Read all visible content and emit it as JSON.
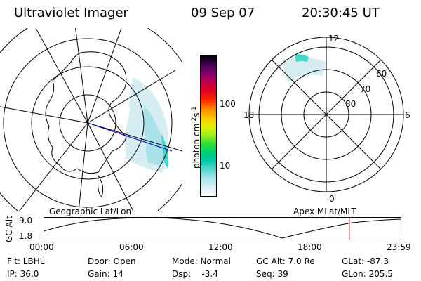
{
  "header": {
    "title": "Ultraviolet Imager",
    "date": "09 Sep 07",
    "time": "20:30:45 UT"
  },
  "left_panel": {
    "caption": "Geographic Lat/Lon"
  },
  "right_panel": {
    "caption": "Apex MLat/MLT",
    "mlt_labels": {
      "top": "12",
      "left": "18",
      "right": "6",
      "bottom": "0"
    },
    "mlat_labels": [
      "60",
      "70",
      "80"
    ]
  },
  "colorbar": {
    "unit_label": "photon cm",
    "unit_sup1": "-2",
    "unit_mid": "s",
    "unit_sup2": "-1",
    "tick_100": "100",
    "tick_10": "10",
    "colors": [
      "#ffffff",
      "#d8f0f4",
      "#a8e4ec",
      "#5ad8d0",
      "#00c8a8",
      "#00d070",
      "#30e030",
      "#a8f020",
      "#e8f000",
      "#ffc000",
      "#ff8000",
      "#ff2000",
      "#e00020",
      "#c00050",
      "#800070",
      "#400050",
      "#000000"
    ]
  },
  "altitude_plot": {
    "ylabel": "GC Alt",
    "ymax_label": "9.0",
    "ymin_label": "1.8",
    "x_ticks": [
      "00:00",
      "06:00",
      "12:00",
      "18:00",
      "23:59"
    ],
    "marker_hour": 20.51
  },
  "info": {
    "flt": "Flt: LBHL",
    "ip": "IP: 36.0",
    "door": "Door: Open",
    "gain": "Gain: 14",
    "mode": "Mode: Normal",
    "dsp": "Dsp:    -3.4",
    "gcalt": "GC Alt: 7.0 Re",
    "seq": "Seq: 39",
    "glat": "GLat: -87.3",
    "glon": "GLon: 205.5"
  },
  "colors": {
    "orbit_marker": "#cc0000",
    "sat_track": "#0000aa",
    "aurora_dim": "#d6eef2",
    "aurora_mid": "#a8e2e8",
    "aurora_bright": "#40d8c8"
  }
}
